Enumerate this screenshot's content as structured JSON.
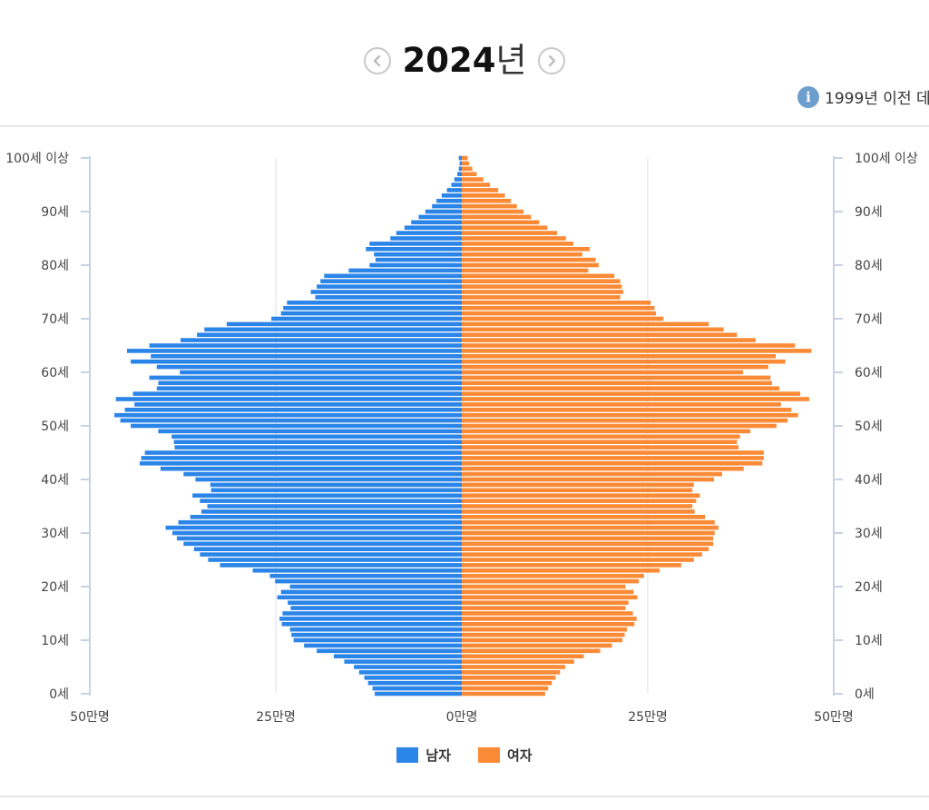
{
  "header": {
    "year": "2024",
    "year_suffix": "년",
    "info_text": "1999년 이전 데",
    "info_icon": "info-icon",
    "prev_icon": "chevron-left-icon",
    "next_icon": "chevron-right-icon"
  },
  "colors": {
    "male": "#2b85e8",
    "female": "#fb8a36",
    "axis": "#c5d3e2",
    "grid": "#d9e2ec"
  },
  "chart_data": {
    "type": "bar",
    "orientation": "horizontal-population-pyramid",
    "y_ticks": [
      {
        "age": 0,
        "label": "0세"
      },
      {
        "age": 10,
        "label": "10세"
      },
      {
        "age": 20,
        "label": "20세"
      },
      {
        "age": 30,
        "label": "30세"
      },
      {
        "age": 40,
        "label": "40세"
      },
      {
        "age": 50,
        "label": "50세"
      },
      {
        "age": 60,
        "label": "60세"
      },
      {
        "age": 70,
        "label": "70세"
      },
      {
        "age": 80,
        "label": "80세"
      },
      {
        "age": 90,
        "label": "90세"
      },
      {
        "age": 100,
        "label": "100세 이상"
      }
    ],
    "x_ticks_left": [
      "50만명",
      "25만명",
      "0만명"
    ],
    "x_ticks_right": [
      "25만명",
      "50만명"
    ],
    "xlim": [
      -50,
      50
    ],
    "x_unit": "만명",
    "ylim": [
      0,
      100
    ],
    "grid": true,
    "legend_position": "bottom",
    "ages": [
      0,
      1,
      2,
      3,
      4,
      5,
      6,
      7,
      8,
      9,
      10,
      11,
      12,
      13,
      14,
      15,
      16,
      17,
      18,
      19,
      20,
      21,
      22,
      23,
      24,
      25,
      26,
      27,
      28,
      29,
      30,
      31,
      32,
      33,
      34,
      35,
      36,
      37,
      38,
      39,
      40,
      41,
      42,
      43,
      44,
      45,
      46,
      47,
      48,
      49,
      50,
      51,
      52,
      53,
      54,
      55,
      56,
      57,
      58,
      59,
      60,
      61,
      62,
      63,
      64,
      65,
      66,
      67,
      68,
      69,
      70,
      71,
      72,
      73,
      74,
      75,
      76,
      77,
      78,
      79,
      80,
      81,
      82,
      83,
      84,
      85,
      86,
      87,
      88,
      89,
      90,
      91,
      92,
      93,
      94,
      95,
      96,
      97,
      98,
      99,
      100
    ],
    "series": [
      {
        "name": "남자",
        "values": [
          11.7,
          12.0,
          12.6,
          13.1,
          13.8,
          14.5,
          15.8,
          17.2,
          19.5,
          21.2,
          22.6,
          22.9,
          23.1,
          24.2,
          24.5,
          24.1,
          23.0,
          23.4,
          24.8,
          24.3,
          23.1,
          25.1,
          25.8,
          28.1,
          32.5,
          34.1,
          35.2,
          36.0,
          37.4,
          38.3,
          38.9,
          39.8,
          38.1,
          36.5,
          35.0,
          34.2,
          35.2,
          36.2,
          33.7,
          33.8,
          35.8,
          37.4,
          40.5,
          43.3,
          43.1,
          42.6,
          38.6,
          38.7,
          39.0,
          40.8,
          44.5,
          45.9,
          46.7,
          45.3,
          44.0,
          46.5,
          44.2,
          41.0,
          40.8,
          42.0,
          37.9,
          41.0,
          44.5,
          41.8,
          45.0,
          42.0,
          37.8,
          35.6,
          34.6,
          31.6,
          25.6,
          24.3,
          24.0,
          23.5,
          19.7,
          20.3,
          19.5,
          19.0,
          18.5,
          15.2,
          12.4,
          11.6,
          11.8,
          12.9,
          12.4,
          9.6,
          8.8,
          7.7,
          6.8,
          5.8,
          4.9,
          4.0,
          3.4,
          2.7,
          2.0,
          1.4,
          1.0,
          0.6,
          0.4,
          0.3,
          0.4
        ]
      },
      {
        "name": "여자",
        "values": [
          11.2,
          11.6,
          12.1,
          12.6,
          13.2,
          13.9,
          15.1,
          16.4,
          18.6,
          20.2,
          21.6,
          21.9,
          22.2,
          23.2,
          23.5,
          23.0,
          22.0,
          22.4,
          23.6,
          23.1,
          22.0,
          23.8,
          24.5,
          26.6,
          29.5,
          31.2,
          32.3,
          33.2,
          33.8,
          33.8,
          34.0,
          34.5,
          34.0,
          32.7,
          31.3,
          31.0,
          31.5,
          32.0,
          31.0,
          31.2,
          33.9,
          35.0,
          37.9,
          40.4,
          40.6,
          40.6,
          37.2,
          37.0,
          37.4,
          38.8,
          42.3,
          43.8,
          45.2,
          44.3,
          42.9,
          46.7,
          45.5,
          42.7,
          41.7,
          41.5,
          37.8,
          41.2,
          43.5,
          42.2,
          47.0,
          44.8,
          39.5,
          37.0,
          35.2,
          33.2,
          27.1,
          26.1,
          25.9,
          25.4,
          21.3,
          21.7,
          21.5,
          21.3,
          20.5,
          17.0,
          18.4,
          18.0,
          16.2,
          17.2,
          15.0,
          14.0,
          12.8,
          11.5,
          10.4,
          9.3,
          8.3,
          7.4,
          6.6,
          5.8,
          4.9,
          3.8,
          2.9,
          2.0,
          1.4,
          1.0,
          0.8
        ]
      }
    ]
  }
}
